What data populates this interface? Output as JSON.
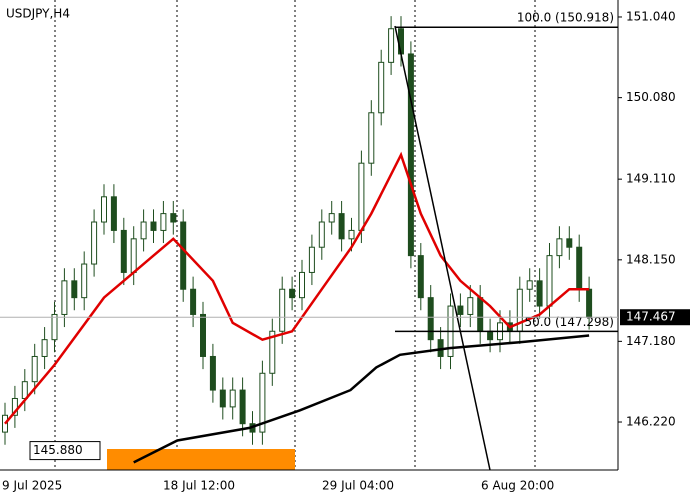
{
  "chart_data": {
    "type": "candlestick",
    "title": "USDJPY,H4",
    "candles": {
      "open": [
        146.1,
        146.3,
        146.5,
        146.7,
        147.0,
        147.2,
        147.5,
        147.9,
        147.7,
        148.1,
        148.6,
        148.9,
        148.5,
        148.0,
        148.4,
        148.6,
        148.5,
        148.7,
        148.6,
        147.8,
        147.5,
        147.0,
        146.6,
        146.4,
        146.6,
        146.2,
        146.1,
        146.8,
        147.3,
        147.8,
        147.7,
        148.0,
        148.3,
        148.6,
        148.7,
        148.4,
        148.5,
        149.3,
        149.9,
        150.5,
        150.9,
        150.6,
        148.2,
        147.7,
        147.2,
        147.0,
        147.6,
        147.5,
        147.7,
        147.3,
        147.2,
        147.4,
        147.3,
        147.8,
        147.9,
        147.6,
        148.2,
        148.4,
        148.3,
        147.8
      ],
      "high": [
        146.45,
        146.65,
        146.85,
        147.15,
        147.35,
        147.65,
        148.05,
        148.05,
        148.25,
        148.75,
        149.05,
        149.05,
        148.65,
        148.55,
        148.75,
        148.75,
        148.85,
        148.85,
        148.75,
        147.95,
        147.65,
        147.15,
        146.75,
        146.75,
        146.75,
        146.35,
        146.95,
        147.45,
        147.95,
        147.95,
        148.15,
        148.45,
        148.75,
        148.85,
        148.85,
        148.65,
        149.45,
        150.05,
        150.65,
        151.05,
        151.05,
        150.75,
        148.35,
        147.85,
        147.35,
        147.75,
        147.75,
        147.85,
        147.85,
        147.45,
        147.55,
        147.55,
        147.95,
        148.05,
        148.05,
        148.35,
        148.55,
        148.55,
        148.45,
        147.95
      ],
      "low": [
        145.95,
        146.15,
        146.35,
        146.55,
        146.85,
        147.05,
        147.35,
        147.55,
        147.55,
        147.95,
        148.45,
        148.35,
        147.85,
        147.85,
        148.25,
        148.35,
        148.35,
        148.45,
        147.65,
        147.35,
        146.85,
        146.45,
        146.25,
        146.25,
        146.05,
        145.95,
        145.95,
        146.65,
        147.15,
        147.55,
        147.55,
        147.85,
        148.15,
        148.45,
        148.25,
        148.25,
        148.35,
        149.15,
        149.75,
        150.35,
        150.45,
        148.05,
        147.55,
        147.05,
        146.85,
        146.85,
        147.35,
        147.35,
        147.15,
        147.05,
        147.05,
        147.15,
        147.15,
        147.65,
        147.45,
        147.45,
        148.05,
        148.15,
        147.65,
        147.32
      ],
      "close": [
        146.3,
        146.5,
        146.7,
        147.0,
        147.2,
        147.5,
        147.9,
        147.7,
        148.1,
        148.6,
        148.9,
        148.5,
        148.0,
        148.4,
        148.6,
        148.5,
        148.7,
        148.6,
        147.8,
        147.5,
        147.0,
        146.6,
        146.4,
        146.6,
        146.2,
        146.1,
        146.8,
        147.3,
        147.8,
        147.7,
        148.0,
        148.3,
        148.6,
        148.7,
        148.4,
        148.5,
        149.3,
        149.9,
        150.5,
        150.9,
        150.6,
        148.2,
        147.7,
        147.2,
        147.0,
        147.6,
        147.5,
        147.7,
        147.3,
        147.2,
        147.4,
        147.3,
        147.8,
        147.9,
        147.6,
        148.2,
        148.4,
        148.3,
        147.8,
        147.467
      ]
    },
    "moving_averages": [
      {
        "color": "#e00000",
        "x": [
          0,
          5,
          10,
          15,
          17,
          21,
          23,
          26,
          29,
          32,
          35,
          37,
          40,
          42,
          44,
          46,
          49,
          51,
          54,
          57,
          59
        ],
        "values": [
          146.2,
          146.9,
          147.7,
          148.2,
          148.4,
          147.9,
          147.4,
          147.2,
          147.3,
          147.8,
          148.3,
          148.7,
          149.4,
          148.7,
          148.2,
          147.9,
          147.6,
          147.35,
          147.5,
          147.8,
          147.8
        ]
      },
      {
        "color": "#000000",
        "x": [
          13,
          17.4,
          24.7,
          29.8,
          34.9,
          37.5,
          39.9,
          44.9,
          52,
          59
        ],
        "values": [
          145.74,
          146.0,
          146.15,
          146.36,
          146.6,
          146.87,
          147.02,
          147.1,
          147.17,
          147.25
        ]
      }
    ],
    "ylim": [
      145.649,
      151.242
    ],
    "yticks": [
      {
        "value": 151.04,
        "label": "151.040"
      },
      {
        "value": 150.08,
        "label": "150.080"
      },
      {
        "value": 149.11,
        "label": "149.110"
      },
      {
        "value": 148.15,
        "label": "148.150"
      },
      {
        "value": 147.18,
        "label": "147.180"
      },
      {
        "value": 146.22,
        "label": "146.220"
      }
    ],
    "xtick_labels": [
      "9 Jul 2025",
      "18 Jul 12:00",
      "29 Jul 04:00",
      "6 Aug 20:00"
    ],
    "current_price": 147.467,
    "fib_levels": [
      {
        "value": 150.918,
        "label": "100.0 (150.918)"
      },
      {
        "value": 147.298,
        "label": "50.0 (147.298)"
      }
    ],
    "price_label": {
      "value": 145.88,
      "label": "145.880"
    }
  }
}
